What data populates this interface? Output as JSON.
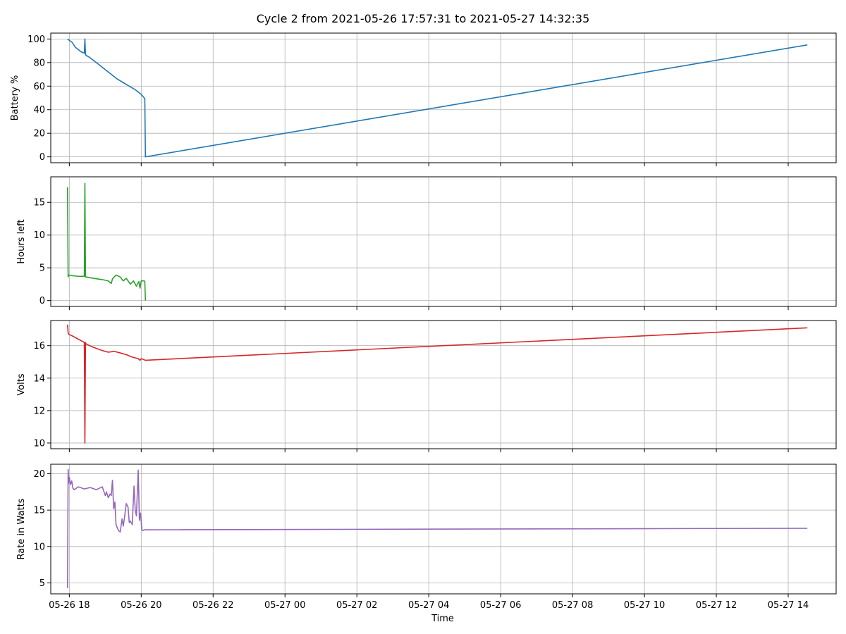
{
  "figure_title": "Cycle 2 from 2021-05-26 17:57:31 to 2021-05-27 14:32:35",
  "x_label": "Time",
  "chart_data": [
    {
      "type": "line",
      "ylabel": "Battery %",
      "ylim": [
        -5,
        105
      ],
      "yticks": [
        0,
        20,
        40,
        60,
        80,
        100
      ],
      "xlim": [
        "2021-05-26 17:29",
        "2021-05-27 15:20"
      ],
      "grid": true,
      "color": "#1f77b4",
      "series": [
        {
          "x": [
            "2021-05-26 17:57",
            "2021-05-26 18:05",
            "2021-05-26 18:10",
            "2021-05-26 18:15",
            "2021-05-26 18:20",
            "2021-05-26 18:25",
            "2021-05-26 18:26",
            "2021-05-26 18:27",
            "2021-05-26 18:28",
            "2021-05-26 18:32",
            "2021-05-26 18:40",
            "2021-05-26 18:50",
            "2021-05-26 19:00",
            "2021-05-26 19:10",
            "2021-05-26 19:20",
            "2021-05-26 19:30",
            "2021-05-26 19:40",
            "2021-05-26 19:50",
            "2021-05-26 20:00",
            "2021-05-26 20:05",
            "2021-05-26 20:06",
            "2021-05-26 20:07",
            "2021-05-27 14:32"
          ],
          "y": [
            100,
            97,
            93,
            91,
            89,
            88,
            100,
            87,
            86,
            85,
            82,
            78,
            74,
            70,
            66,
            63,
            60,
            57,
            53,
            50,
            49,
            0,
            95
          ]
        }
      ]
    },
    {
      "type": "line",
      "ylabel": "Hours left",
      "ylim": [
        -0.9,
        18.9
      ],
      "yticks": [
        0,
        5,
        10,
        15
      ],
      "xlim": [
        "2021-05-26 17:29",
        "2021-05-27 15:20"
      ],
      "grid": true,
      "color": "#2ca02c",
      "series": [
        {
          "x": [
            "2021-05-26 17:57",
            "2021-05-26 17:58",
            "2021-05-26 17:59",
            "2021-05-26 18:05",
            "2021-05-26 18:15",
            "2021-05-26 18:25",
            "2021-05-26 18:26",
            "2021-05-26 18:27",
            "2021-05-26 18:28",
            "2021-05-26 18:40",
            "2021-05-26 18:55",
            "2021-05-26 19:05",
            "2021-05-26 19:10",
            "2021-05-26 19:12",
            "2021-05-26 19:18",
            "2021-05-26 19:25",
            "2021-05-26 19:30",
            "2021-05-26 19:35",
            "2021-05-26 19:42",
            "2021-05-26 19:47",
            "2021-05-26 19:52",
            "2021-05-26 19:56",
            "2021-05-26 19:58",
            "2021-05-26 20:00",
            "2021-05-26 20:02",
            "2021-05-26 20:05",
            "2021-05-26 20:06",
            "2021-05-26 20:07"
          ],
          "y": [
            17.3,
            3.6,
            3.9,
            3.8,
            3.7,
            3.7,
            17.9,
            3.6,
            3.6,
            3.4,
            3.2,
            3.0,
            2.6,
            3.3,
            3.9,
            3.6,
            3.0,
            3.4,
            2.5,
            3.0,
            2.2,
            2.9,
            1.9,
            3.0,
            3.0,
            3.0,
            2.9,
            0.0
          ]
        }
      ]
    },
    {
      "type": "line",
      "ylabel": "Volts",
      "ylim": [
        9.65,
        17.55
      ],
      "yticks": [
        10,
        12,
        14,
        16
      ],
      "xlim": [
        "2021-05-26 17:29",
        "2021-05-27 15:20"
      ],
      "grid": true,
      "color": "#d62728",
      "series": [
        {
          "x": [
            "2021-05-26 17:57",
            "2021-05-26 17:58",
            "2021-05-26 17:59",
            "2021-05-26 18:05",
            "2021-05-26 18:15",
            "2021-05-26 18:25",
            "2021-05-26 18:26",
            "2021-05-26 18:27",
            "2021-05-26 18:28",
            "2021-05-26 18:40",
            "2021-05-26 18:55",
            "2021-05-26 19:05",
            "2021-05-26 19:15",
            "2021-05-26 19:25",
            "2021-05-26 19:35",
            "2021-05-26 19:45",
            "2021-05-26 19:55",
            "2021-05-26 19:58",
            "2021-05-26 20:00",
            "2021-05-26 20:07",
            "2021-05-27 14:32"
          ],
          "y": [
            17.3,
            16.8,
            16.7,
            16.6,
            16.4,
            16.2,
            10.0,
            16.2,
            16.1,
            15.9,
            15.7,
            15.6,
            15.65,
            15.55,
            15.45,
            15.3,
            15.2,
            15.1,
            15.2,
            15.1,
            17.1
          ]
        }
      ]
    },
    {
      "type": "line",
      "ylabel": "Rate in Watts",
      "ylim": [
        3.5,
        21.3
      ],
      "yticks": [
        5,
        10,
        15,
        20
      ],
      "xlim": [
        "2021-05-26 17:29",
        "2021-05-27 15:20"
      ],
      "grid": true,
      "color": "#9467bd",
      "series": [
        {
          "x": [
            "2021-05-26 17:57",
            "2021-05-26 17:58",
            "2021-05-26 17:59",
            "2021-05-26 18:00",
            "2021-05-26 18:02",
            "2021-05-26 18:04",
            "2021-05-26 18:06",
            "2021-05-26 18:08",
            "2021-05-26 18:15",
            "2021-05-26 18:25",
            "2021-05-26 18:35",
            "2021-05-26 18:45",
            "2021-05-26 18:55",
            "2021-05-26 19:00",
            "2021-05-26 19:02",
            "2021-05-26 19:05",
            "2021-05-26 19:08",
            "2021-05-26 19:10",
            "2021-05-26 19:12",
            "2021-05-26 19:14",
            "2021-05-26 19:16",
            "2021-05-26 19:18",
            "2021-05-26 19:22",
            "2021-05-26 19:25",
            "2021-05-26 19:28",
            "2021-05-26 19:30",
            "2021-05-26 19:32",
            "2021-05-26 19:35",
            "2021-05-26 19:38",
            "2021-05-26 19:40",
            "2021-05-26 19:42",
            "2021-05-26 19:45",
            "2021-05-26 19:48",
            "2021-05-26 19:50",
            "2021-05-26 19:52",
            "2021-05-26 19:55",
            "2021-05-26 19:57",
            "2021-05-26 19:59",
            "2021-05-26 20:01",
            "2021-05-26 20:03",
            "2021-05-26 20:05",
            "2021-05-26 20:07",
            "2021-05-27 14:32"
          ],
          "y": [
            4.3,
            20.6,
            18.7,
            19.5,
            18.5,
            19.0,
            18.0,
            17.8,
            18.2,
            17.9,
            18.1,
            17.8,
            18.2,
            17.0,
            17.5,
            16.7,
            17.2,
            17.0,
            19.1,
            15.2,
            16.1,
            13.0,
            12.2,
            12.0,
            13.8,
            12.8,
            13.9,
            15.9,
            15.4,
            13.3,
            13.5,
            13.0,
            18.3,
            15.0,
            14.2,
            20.5,
            13.6,
            14.6,
            12.3,
            12.2,
            12.3,
            12.3,
            12.5
          ]
        }
      ]
    }
  ],
  "x_tick_labels": [
    "05-26 18",
    "05-26 20",
    "05-26 22",
    "05-27 00",
    "05-27 02",
    "05-27 04",
    "05-27 06",
    "05-27 08",
    "05-27 10",
    "05-27 12",
    "05-27 14"
  ],
  "x_tick_values": [
    "2021-05-26 18:00",
    "2021-05-26 20:00",
    "2021-05-26 22:00",
    "2021-05-27 00:00",
    "2021-05-27 02:00",
    "2021-05-27 04:00",
    "2021-05-27 06:00",
    "2021-05-27 08:00",
    "2021-05-27 10:00",
    "2021-05-27 12:00",
    "2021-05-27 14:00"
  ]
}
